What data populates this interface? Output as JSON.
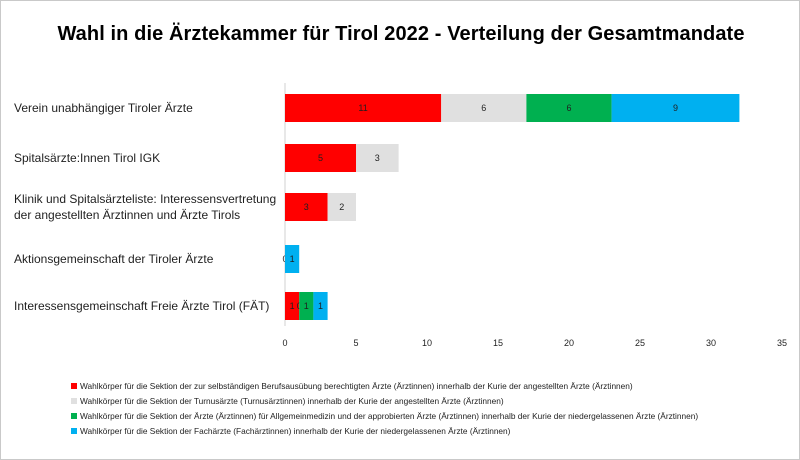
{
  "chart_data": {
    "type": "bar",
    "orientation": "horizontal",
    "stacked": true,
    "title": "Wahl in die Ärztekammer für Tirol 2022 - Verteilung der Gesamtmandate",
    "categories": [
      [
        "Verein unabhängiger Tiroler Ärzte"
      ],
      [
        "Spitalsärzte:Innen Tirol IGK"
      ],
      [
        "Klinik und Spitalsärzteliste: Interessensvertretung",
        "der angestellten Ärztinnen und Ärzte Tirols"
      ],
      [
        "Aktionsgemeinschaft der Tiroler Ärzte"
      ],
      [
        "Interessensgemeinschaft Freie Ärzte Tirol (FÄT)"
      ]
    ],
    "series": [
      {
        "name": "Wahlkörper für die Sektion der zur selbständigen Berufsausübung berechtigten Ärzte (Ärztinnen) innerhalb der Kurie der angestellten Ärzte (Ärztinnen)",
        "color": "#ff0000",
        "values": [
          11,
          5,
          3,
          0,
          1
        ]
      },
      {
        "name": "Wahlkörper für die Sektion der Turnusärzte (Turnusärztinnen) innerhalb der Kurie der angestellten Ärzte (Ärztinnen)",
        "color": "#e0e0e0",
        "values": [
          6,
          3,
          2,
          0,
          0
        ]
      },
      {
        "name": "Wahlkörper für die Sektion der Ärzte (Ärztinnen) für Allgemeinmedizin und der approbierten Ärzte (Ärztinnen) innerhalb der Kurie der niedergelassenen Ärzte (Ärztinnen)",
        "color": "#00b050",
        "values": [
          6,
          0,
          0,
          0,
          1
        ]
      },
      {
        "name": "Wahlkörper für die Sektion der Fachärzte (Fachärztinnen) innerhalb der Kurie der niedergelassenen Ärzte (Ärztinnen)",
        "color": "#00b0f0",
        "values": [
          9,
          0,
          0,
          1,
          1
        ]
      }
    ],
    "data_labels": [
      [
        "11",
        "6",
        "6",
        "9"
      ],
      [
        "5",
        "3",
        "",
        ""
      ],
      [
        "3",
        "2",
        "",
        ""
      ],
      [
        "0",
        "",
        "",
        "1"
      ],
      [
        "1",
        "0",
        "1",
        "1"
      ]
    ],
    "xlim": [
      0,
      35
    ],
    "xticks": [
      0,
      5,
      10,
      15,
      20,
      25,
      30,
      35
    ],
    "xlabel": "",
    "ylabel": "",
    "grid": false,
    "legend_position": "bottom"
  }
}
